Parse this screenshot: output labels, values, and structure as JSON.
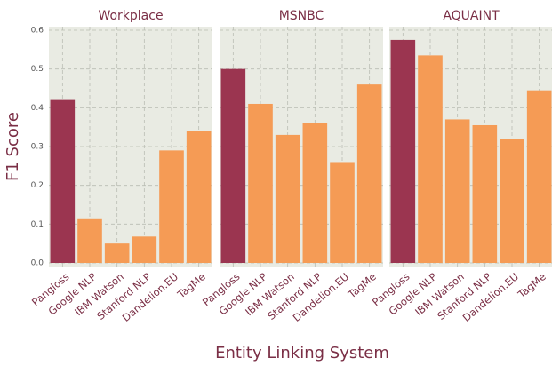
{
  "chart_data": {
    "type": "bar",
    "xlabel": "Entity Linking System",
    "ylabel": "F1 Score",
    "categories": [
      "Pangloss",
      "Google NLP",
      "IBM Watson",
      "Stanford NLP",
      "Dandelion.EU",
      "TagMe"
    ],
    "colors": [
      "#9b3550",
      "#f59b55",
      "#f59b55",
      "#f59b55",
      "#f59b55",
      "#f59b55"
    ],
    "facets": [
      {
        "title": "Workplace",
        "values": [
          0.42,
          0.115,
          0.05,
          0.068,
          0.29,
          0.34
        ]
      },
      {
        "title": "MSNBC",
        "values": [
          0.5,
          0.41,
          0.33,
          0.36,
          0.26,
          0.46
        ]
      },
      {
        "title": "AQUAINT",
        "values": [
          0.575,
          0.535,
          0.37,
          0.355,
          0.32,
          0.445
        ]
      }
    ],
    "ylim": [
      0,
      0.6
    ],
    "yticks": [
      {
        "value": 0,
        "label": "0.0"
      },
      0.1,
      0.2,
      0.3,
      0.4,
      0.5,
      0.6
    ],
    "grid": true
  }
}
